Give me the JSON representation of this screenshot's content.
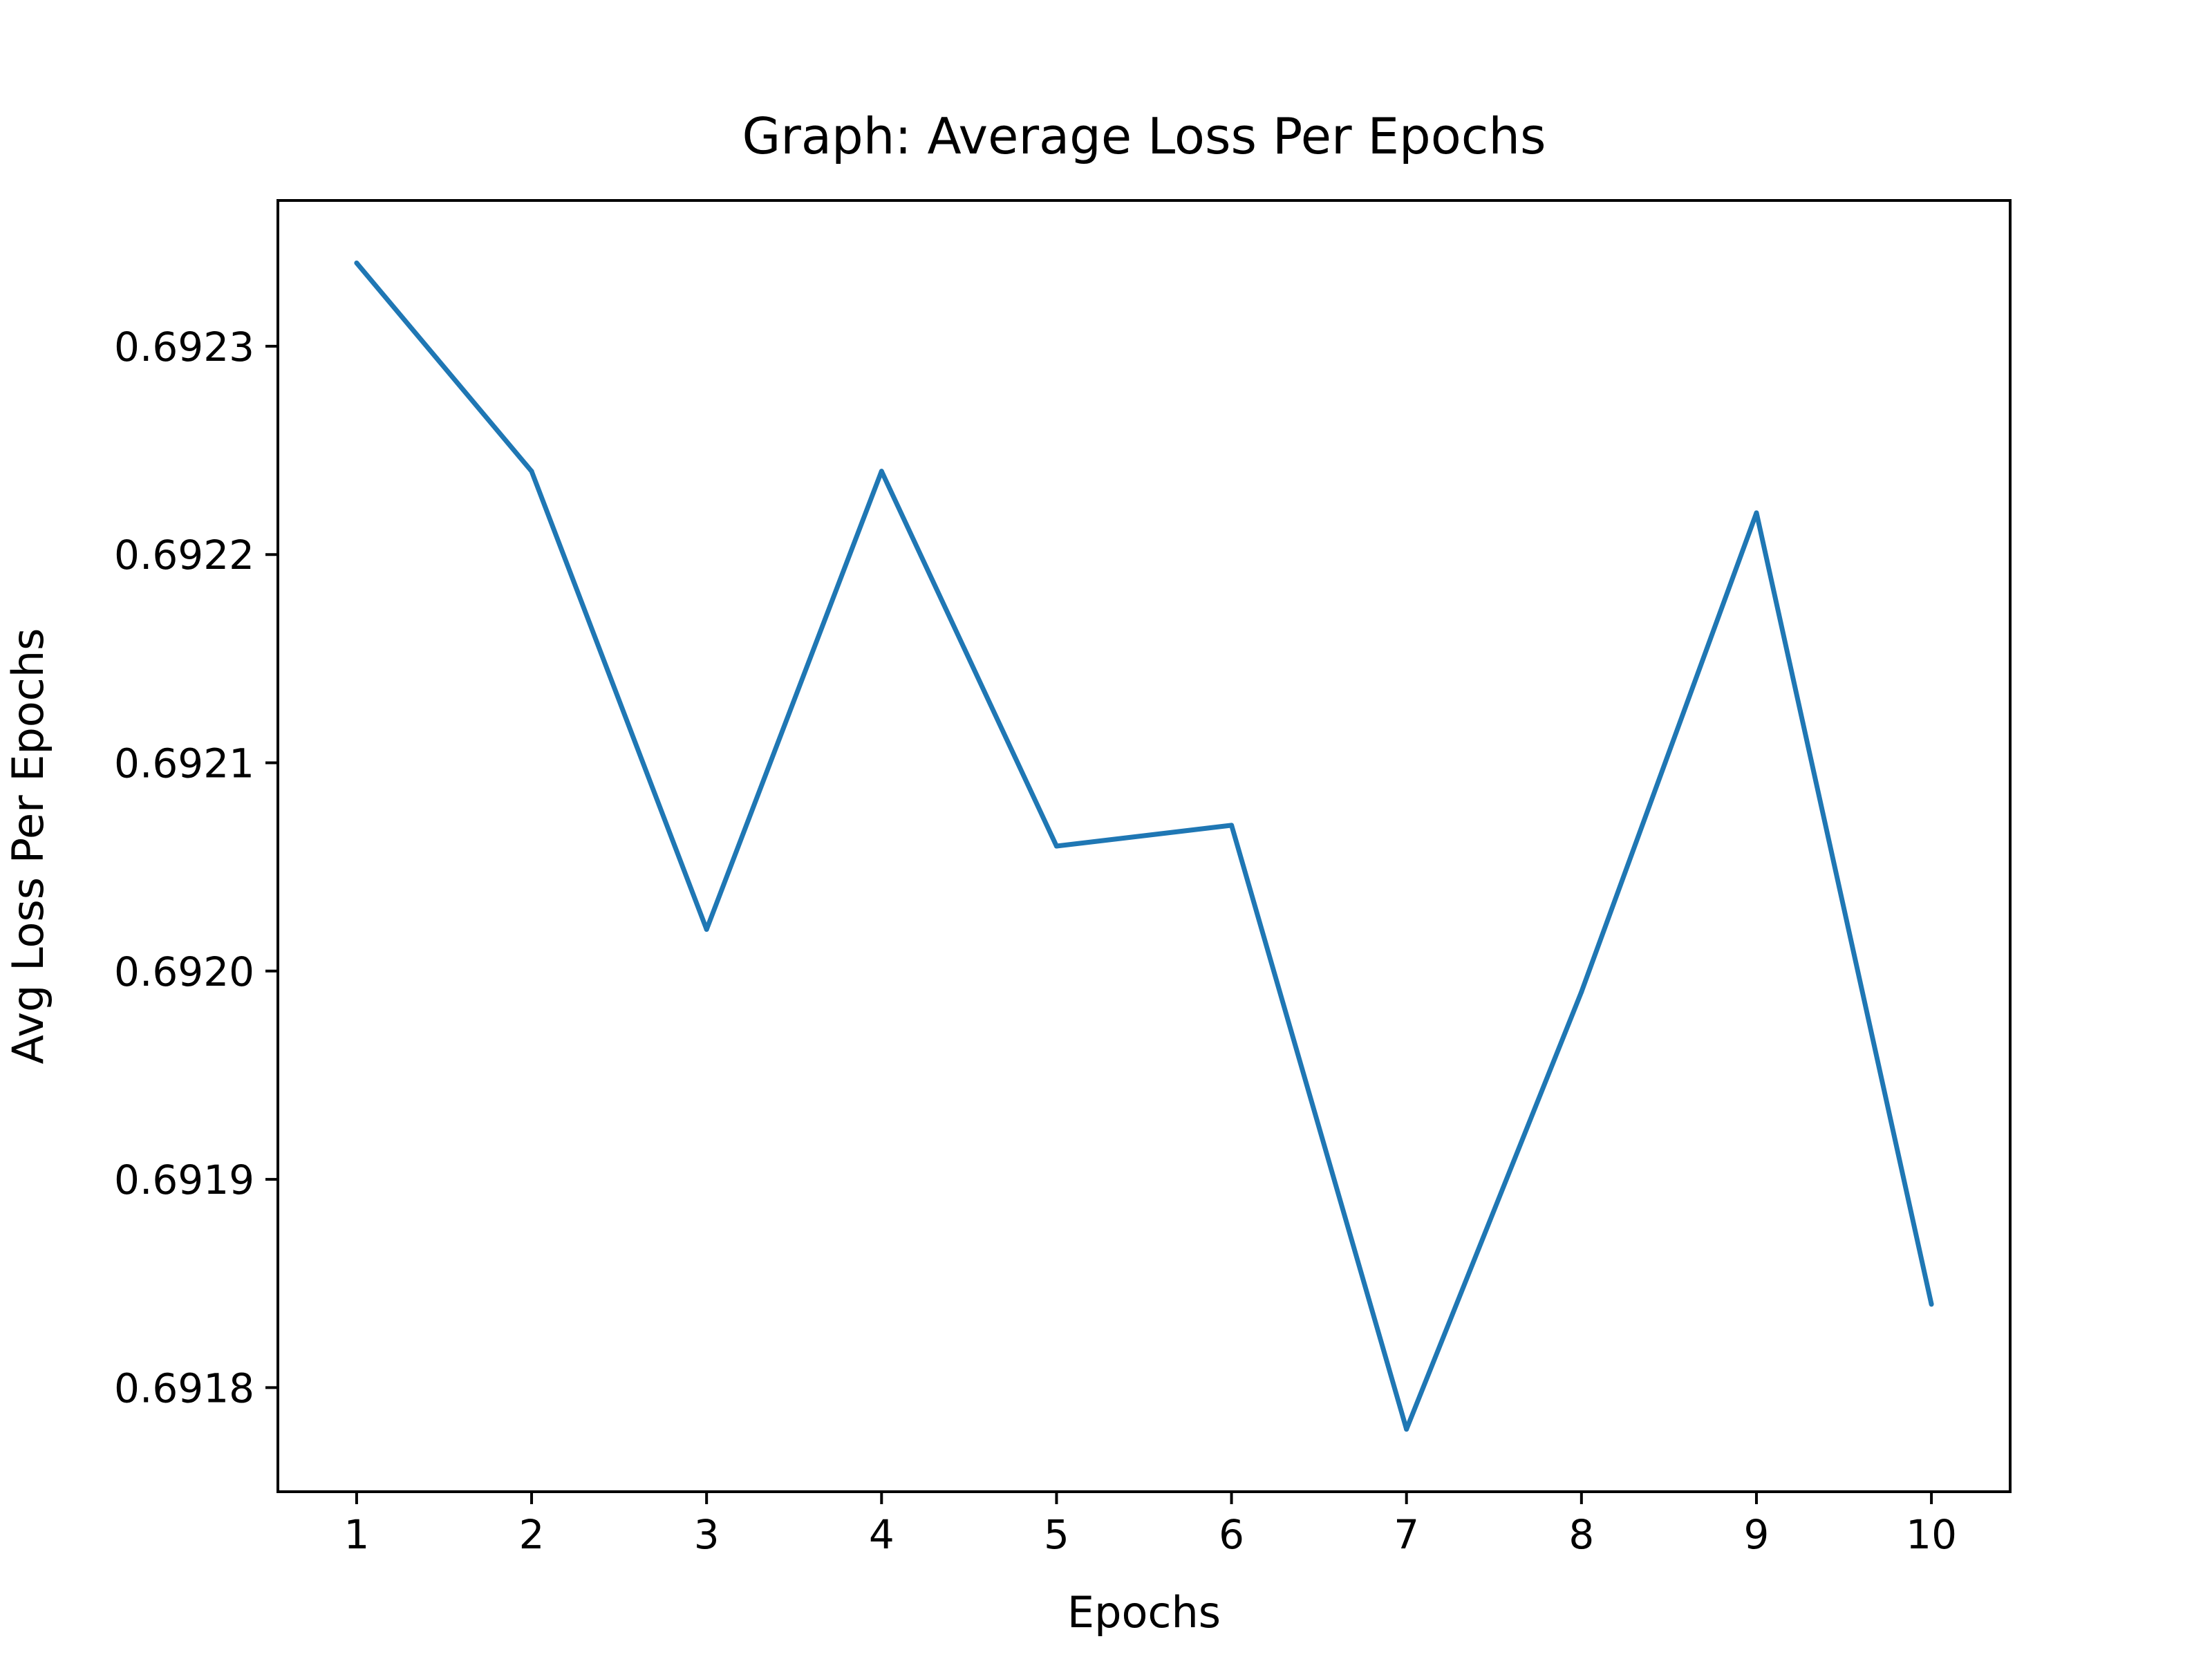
{
  "chart_data": {
    "type": "line",
    "title": "Graph: Average Loss Per Epochs",
    "xlabel": "Epochs",
    "ylabel": "Avg Loss Per Epochs",
    "x": [
      1,
      2,
      3,
      4,
      5,
      6,
      7,
      8,
      9,
      10
    ],
    "x_ticks": [
      1,
      2,
      3,
      4,
      5,
      6,
      7,
      8,
      9,
      10
    ],
    "y_ticks": [
      0.6918,
      0.6919,
      0.692,
      0.6921,
      0.6922,
      0.6923
    ],
    "y_tick_labels": [
      "0.6918",
      "0.6919",
      "0.6920",
      "0.6921",
      "0.6922",
      "0.6923"
    ],
    "xlim": [
      0.55,
      10.45
    ],
    "ylim": [
      0.69175,
      0.69237
    ],
    "grid": false,
    "series": [
      {
        "color": "#1f77b4",
        "values": [
          0.69234,
          0.69224,
          0.69202,
          0.69224,
          0.69206,
          0.69207,
          0.69178,
          0.69199,
          0.69222,
          0.69184
        ]
      }
    ]
  }
}
